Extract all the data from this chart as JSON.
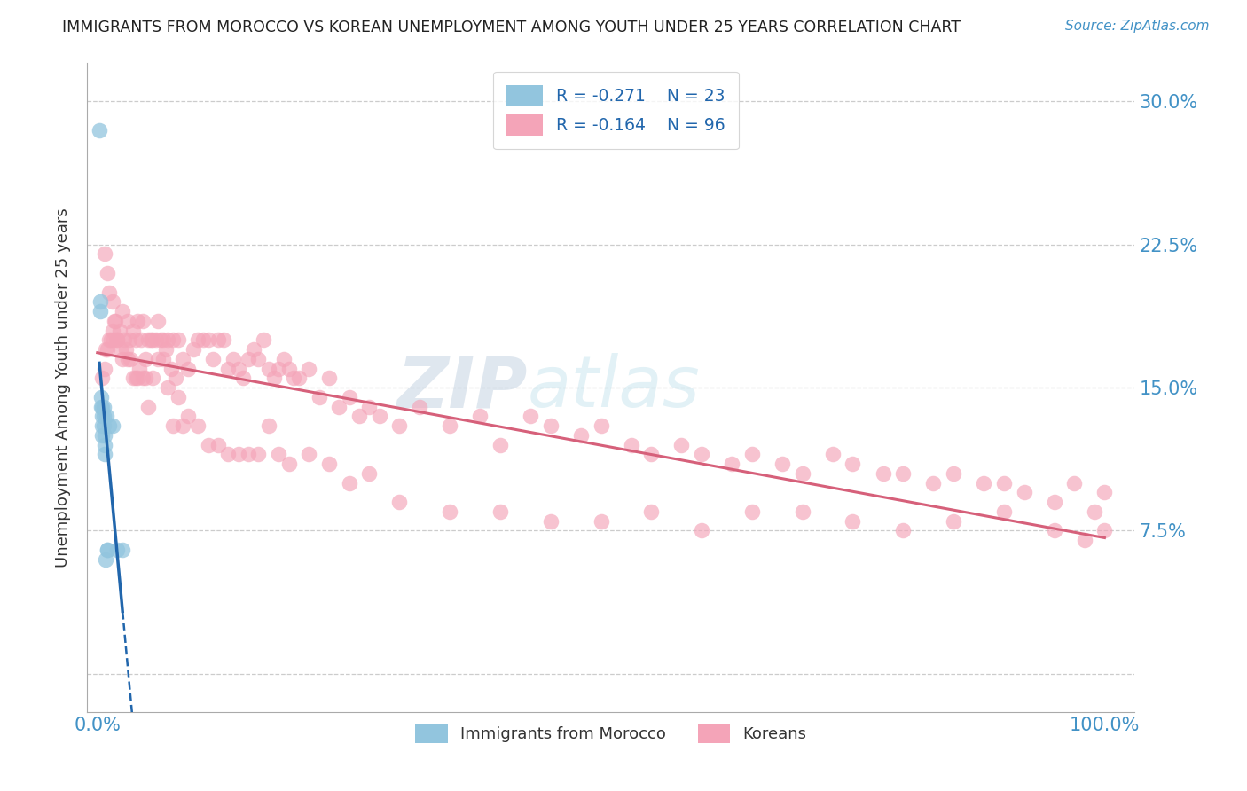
{
  "title": "IMMIGRANTS FROM MOROCCO VS KOREAN UNEMPLOYMENT AMONG YOUTH UNDER 25 YEARS CORRELATION CHART",
  "source": "Source: ZipAtlas.com",
  "ylabel": "Unemployment Among Youth under 25 years",
  "xlim": [
    -0.01,
    1.03
  ],
  "ylim": [
    -0.02,
    0.32
  ],
  "yticks": [
    0.0,
    0.075,
    0.15,
    0.225,
    0.3
  ],
  "ytick_labels": [
    "",
    "7.5%",
    "15.0%",
    "22.5%",
    "30.0%"
  ],
  "xtick_labels": [
    "0.0%",
    "100.0%"
  ],
  "legend_r1": "R = -0.271",
  "legend_n1": "N = 23",
  "legend_r2": "R = -0.164",
  "legend_n2": "N = 96",
  "color_blue": "#92c5de",
  "color_pink": "#f4a4b8",
  "color_trendline_blue": "#2166ac",
  "color_trendline_pink": "#d6607a",
  "color_axis": "#4292c6",
  "color_title": "#222222",
  "morocco_x": [
    0.002,
    0.003,
    0.003,
    0.004,
    0.004,
    0.005,
    0.005,
    0.005,
    0.005,
    0.006,
    0.006,
    0.006,
    0.007,
    0.007,
    0.007,
    0.008,
    0.009,
    0.01,
    0.01,
    0.012,
    0.015,
    0.02,
    0.025
  ],
  "morocco_y": [
    0.285,
    0.195,
    0.19,
    0.145,
    0.14,
    0.14,
    0.135,
    0.13,
    0.125,
    0.14,
    0.135,
    0.13,
    0.125,
    0.12,
    0.115,
    0.06,
    0.135,
    0.065,
    0.065,
    0.13,
    0.13,
    0.065,
    0.065
  ],
  "korean_x": [
    0.005,
    0.007,
    0.008,
    0.01,
    0.012,
    0.013,
    0.015,
    0.016,
    0.018,
    0.02,
    0.022,
    0.025,
    0.027,
    0.03,
    0.032,
    0.035,
    0.038,
    0.04,
    0.043,
    0.045,
    0.048,
    0.05,
    0.053,
    0.055,
    0.058,
    0.06,
    0.063,
    0.065,
    0.068,
    0.07,
    0.073,
    0.075,
    0.078,
    0.08,
    0.085,
    0.09,
    0.095,
    0.1,
    0.105,
    0.11,
    0.115,
    0.12,
    0.125,
    0.13,
    0.135,
    0.14,
    0.145,
    0.15,
    0.155,
    0.16,
    0.165,
    0.17,
    0.175,
    0.18,
    0.185,
    0.19,
    0.195,
    0.2,
    0.21,
    0.22,
    0.23,
    0.24,
    0.25,
    0.26,
    0.27,
    0.28,
    0.3,
    0.32,
    0.35,
    0.38,
    0.4,
    0.43,
    0.45,
    0.48,
    0.5,
    0.53,
    0.55,
    0.58,
    0.6,
    0.63,
    0.65,
    0.68,
    0.7,
    0.73,
    0.75,
    0.78,
    0.8,
    0.83,
    0.85,
    0.88,
    0.9,
    0.92,
    0.95,
    0.97,
    0.99,
    1.0
  ],
  "korean_y": [
    0.155,
    0.16,
    0.17,
    0.17,
    0.175,
    0.175,
    0.18,
    0.175,
    0.185,
    0.175,
    0.18,
    0.19,
    0.175,
    0.185,
    0.175,
    0.18,
    0.175,
    0.185,
    0.175,
    0.185,
    0.165,
    0.175,
    0.175,
    0.175,
    0.175,
    0.185,
    0.175,
    0.175,
    0.17,
    0.175,
    0.16,
    0.175,
    0.155,
    0.175,
    0.165,
    0.16,
    0.17,
    0.175,
    0.175,
    0.175,
    0.165,
    0.175,
    0.175,
    0.16,
    0.165,
    0.16,
    0.155,
    0.165,
    0.17,
    0.165,
    0.175,
    0.16,
    0.155,
    0.16,
    0.165,
    0.16,
    0.155,
    0.155,
    0.16,
    0.145,
    0.155,
    0.14,
    0.145,
    0.135,
    0.14,
    0.135,
    0.13,
    0.14,
    0.13,
    0.135,
    0.12,
    0.135,
    0.13,
    0.125,
    0.13,
    0.12,
    0.115,
    0.12,
    0.115,
    0.11,
    0.115,
    0.11,
    0.105,
    0.115,
    0.11,
    0.105,
    0.105,
    0.1,
    0.105,
    0.1,
    0.1,
    0.095,
    0.09,
    0.1,
    0.085,
    0.095
  ],
  "korean_extra_x": [
    0.007,
    0.01,
    0.012,
    0.015,
    0.017,
    0.02,
    0.023,
    0.025,
    0.028,
    0.03,
    0.033,
    0.035,
    0.038,
    0.04,
    0.042,
    0.045,
    0.048,
    0.05,
    0.055,
    0.06,
    0.065,
    0.07,
    0.075,
    0.08,
    0.085,
    0.09,
    0.1,
    0.11,
    0.12,
    0.13,
    0.14,
    0.15,
    0.16,
    0.17,
    0.18,
    0.19,
    0.21,
    0.23,
    0.25,
    0.27,
    0.3,
    0.35,
    0.4,
    0.45,
    0.5,
    0.55,
    0.6,
    0.65,
    0.7,
    0.75,
    0.8,
    0.85,
    0.9,
    0.95,
    0.98,
    1.0
  ],
  "korean_extra_y": [
    0.22,
    0.21,
    0.2,
    0.195,
    0.185,
    0.175,
    0.17,
    0.165,
    0.17,
    0.165,
    0.165,
    0.155,
    0.155,
    0.155,
    0.16,
    0.155,
    0.155,
    0.14,
    0.155,
    0.165,
    0.165,
    0.15,
    0.13,
    0.145,
    0.13,
    0.135,
    0.13,
    0.12,
    0.12,
    0.115,
    0.115,
    0.115,
    0.115,
    0.13,
    0.115,
    0.11,
    0.115,
    0.11,
    0.1,
    0.105,
    0.09,
    0.085,
    0.085,
    0.08,
    0.08,
    0.085,
    0.075,
    0.085,
    0.085,
    0.08,
    0.075,
    0.08,
    0.085,
    0.075,
    0.07,
    0.075
  ]
}
